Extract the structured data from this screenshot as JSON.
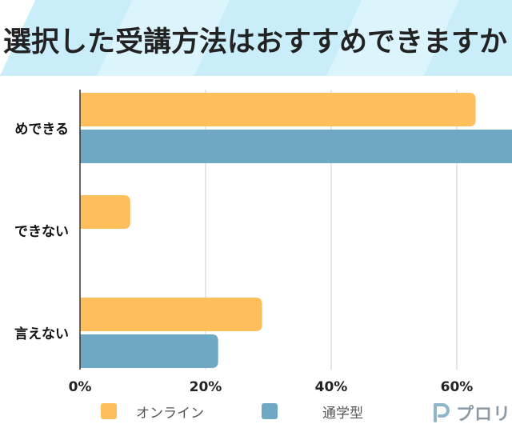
{
  "title": "選択した受講方法はおすすめできますか",
  "colors": {
    "online": "#FFBE5C",
    "tsugaku": "#6FA8C2",
    "title_bg": "#C9EEFA",
    "axis": "#333333",
    "grid": "#CCCCCC"
  },
  "legend": {
    "items": [
      {
        "label": "オンライン",
        "color": "#FFBE5C"
      },
      {
        "label": "通学型",
        "color": "#6FA8C2"
      }
    ],
    "placement": "bottom"
  },
  "logo": {
    "text": "プロリ",
    "icon": "p-logo-icon"
  },
  "chart_data": {
    "type": "bar",
    "orientation": "horizontal",
    "categories": [
      "めできる",
      "できない",
      "言えない"
    ],
    "series": [
      {
        "name": "オンライン",
        "color": "#FFBE5C",
        "values": [
          63,
          8,
          29
        ]
      },
      {
        "name": "通学型",
        "color": "#6FA8C2",
        "values": [
          78,
          0,
          22
        ]
      }
    ],
    "xticks": [
      "0%",
      "20%",
      "40%",
      "60%"
    ],
    "xtick_values": [
      0,
      20,
      40,
      60
    ],
    "xlim": [
      0,
      80
    ],
    "grid": true,
    "legend": "bottom"
  }
}
